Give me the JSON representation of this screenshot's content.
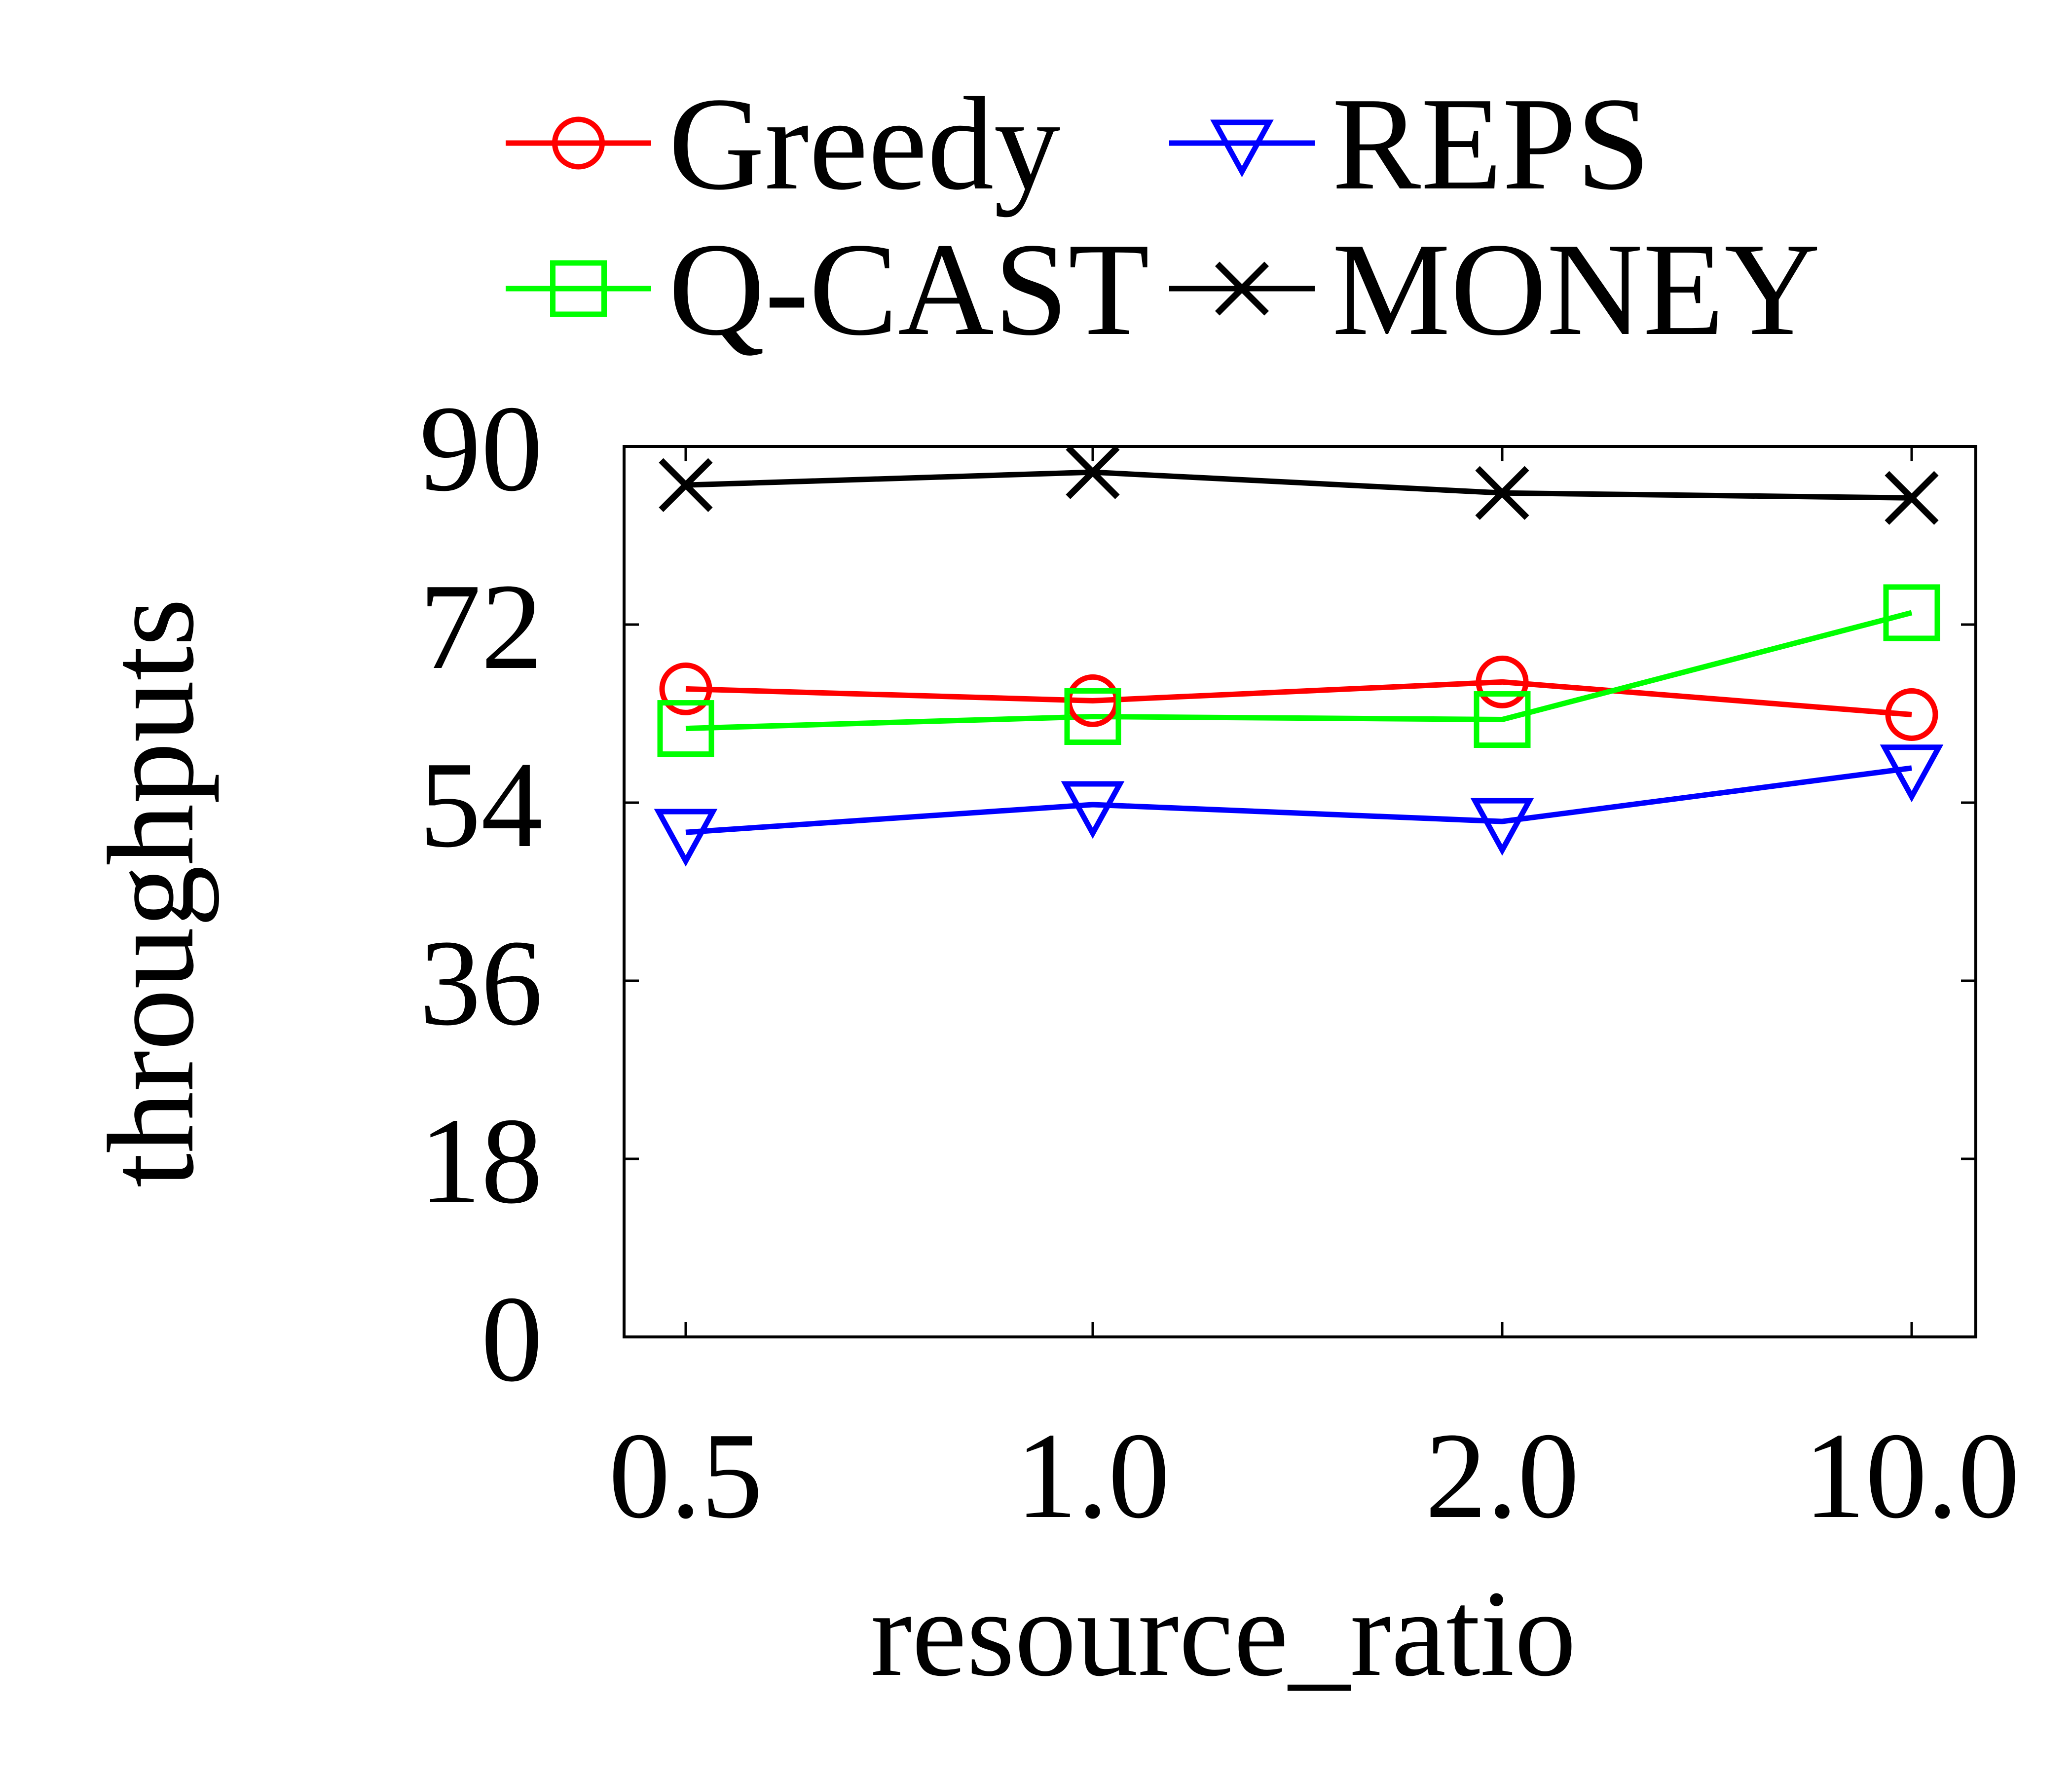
{
  "chart_data": {
    "type": "line",
    "xlabel": "resource_ratio",
    "ylabel": "throughputs",
    "categories": [
      "0.5",
      "1.0",
      "2.0",
      "10.0"
    ],
    "ylim": [
      0,
      90
    ],
    "yticks": [
      "0",
      "18",
      "36",
      "54",
      "72",
      "90"
    ],
    "grid": false,
    "legend_position": "top",
    "series": [
      {
        "name": "Greedy",
        "color": "#ff0000",
        "marker": "circle",
        "values": [
          65.5,
          64.3,
          66.2,
          62.9
        ]
      },
      {
        "name": "REPS",
        "color": "#0000ff",
        "marker": "triangle-down",
        "values": [
          51.0,
          53.8,
          52.1,
          57.5
        ]
      },
      {
        "name": "Q-CAST",
        "color": "#00ff00",
        "marker": "square",
        "values": [
          61.5,
          62.7,
          62.4,
          73.2
        ]
      },
      {
        "name": "MONEY",
        "color": "#000000",
        "marker": "x",
        "values": [
          86.1,
          87.4,
          85.3,
          84.8
        ]
      }
    ]
  }
}
